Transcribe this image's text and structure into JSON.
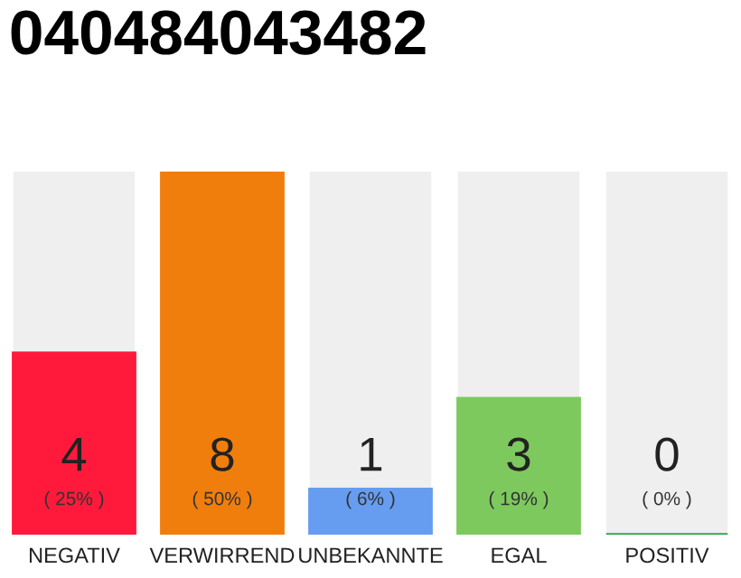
{
  "chart_data": {
    "type": "bar",
    "title": "040484043482",
    "categories": [
      "NEGATIV",
      "VERWIRREND",
      "UNBEKANNTE",
      "EGAL",
      "POSITIV"
    ],
    "values": [
      4,
      8,
      1,
      3,
      0
    ],
    "colors": [
      "#ff1a3c",
      "#f07e0c",
      "#679df0",
      "#7dc95e",
      "#28a745"
    ],
    "value_labels": [
      "4",
      "8",
      "1",
      "3",
      "0"
    ],
    "annotations": [
      "( 25% )",
      "( 50% )",
      "( 6% )",
      "( 19% )",
      "( 0% )"
    ],
    "grid": false,
    "legend": false
  }
}
